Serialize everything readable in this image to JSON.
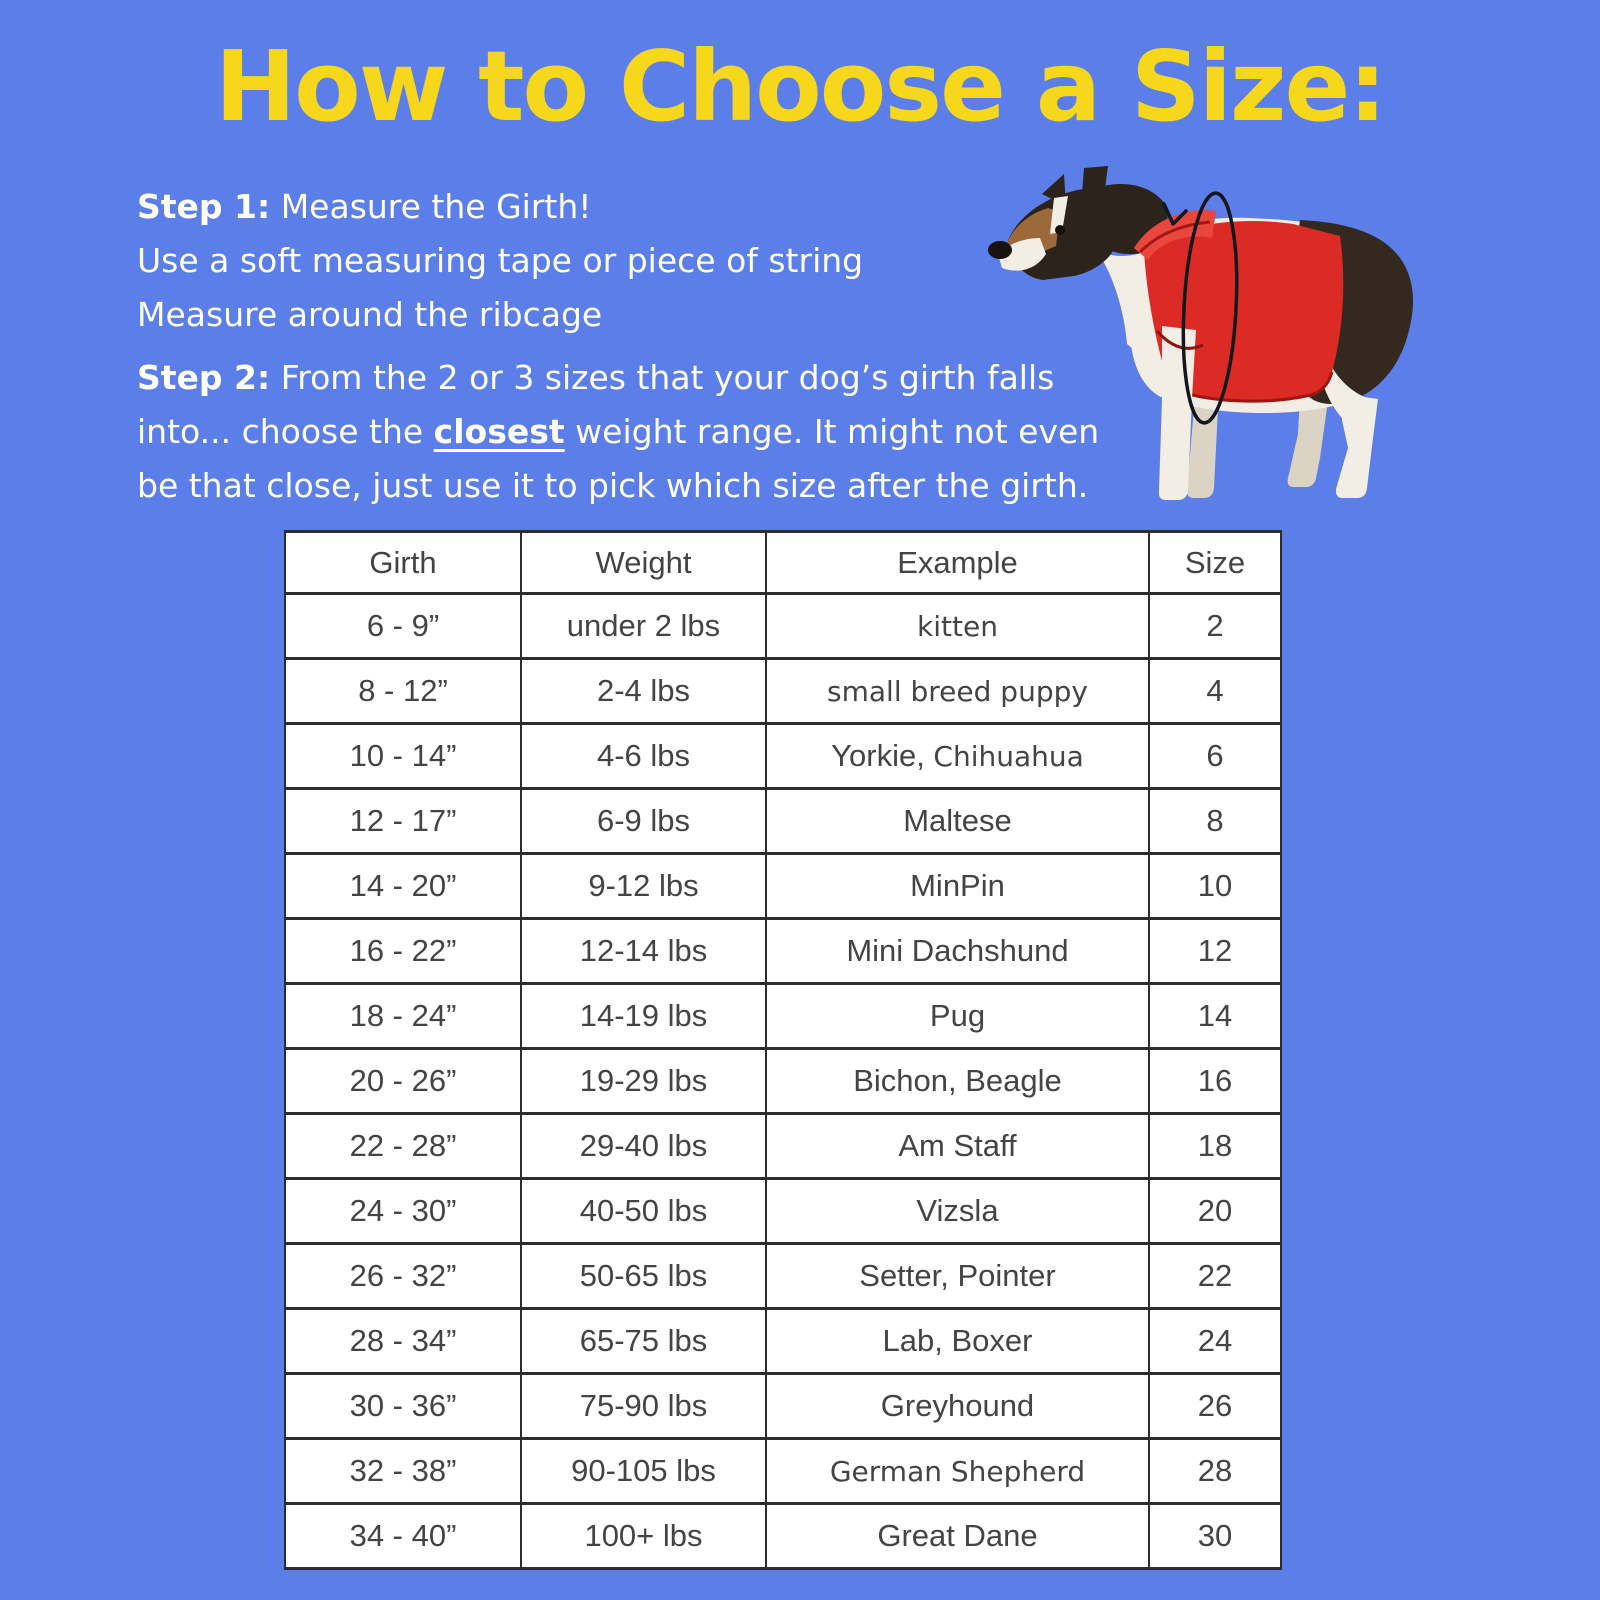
{
  "page": {
    "title": "How to Choose a Size:"
  },
  "steps": {
    "step1": {
      "label": "Step 1:",
      "heading": " Measure the Girth!",
      "lines": [
        "Use a soft measuring tape or piece of string",
        "Measure around the ribcage"
      ]
    },
    "step2": {
      "label": "Step 2:",
      "line1": " From the 2 or 3 sizes that your dog’s girth falls",
      "line2_pre": "into... choose the ",
      "line2_em": "closest",
      "line2_post": " weight range. It might not even",
      "line3": "be that close, just use it to pick which size after the girth."
    }
  },
  "illustration": {
    "description": "dog wearing red fleece vest with measurement loop arrow around its girth"
  },
  "table": {
    "headers": [
      "Girth",
      "Weight",
      "Example",
      "Size"
    ],
    "rows": [
      {
        "girth": "6 - 9”",
        "weight": "under 2 lbs",
        "example": [
          {
            "t": "kitten",
            "alt": true
          }
        ],
        "size": "2"
      },
      {
        "girth": "8 - 12”",
        "weight": "2-4 lbs",
        "example": [
          {
            "t": "small breed puppy",
            "alt": true
          }
        ],
        "size": "4"
      },
      {
        "girth": "10 - 14”",
        "weight": "4-6 lbs",
        "example": [
          {
            "t": "Yorkie, ",
            "alt": false
          },
          {
            "t": "Chihuahua",
            "alt": true
          }
        ],
        "size": "6"
      },
      {
        "girth": "12 - 17”",
        "weight": "6-9 lbs",
        "example": [
          {
            "t": "Maltese",
            "alt": false
          }
        ],
        "size": "8"
      },
      {
        "girth": "14 - 20”",
        "weight": "9-12 lbs",
        "example": [
          {
            "t": "MinPin",
            "alt": false
          }
        ],
        "size": "10"
      },
      {
        "girth": "16 - 22”",
        "weight": "12-14 lbs",
        "example": [
          {
            "t": "Mini Dachshund",
            "alt": false
          }
        ],
        "size": "12"
      },
      {
        "girth": "18 - 24”",
        "weight": "14-19 lbs",
        "example": [
          {
            "t": "Pug",
            "alt": false
          }
        ],
        "size": "14"
      },
      {
        "girth": "20 - 26”",
        "weight": "19-29 lbs",
        "example": [
          {
            "t": "Bichon, Beagle",
            "alt": false
          }
        ],
        "size": "16"
      },
      {
        "girth": "22 - 28”",
        "weight": "29-40 lbs",
        "example": [
          {
            "t": "Am Staff",
            "alt": false
          }
        ],
        "size": "18"
      },
      {
        "girth": "24 - 30”",
        "weight": "40-50 lbs",
        "example": [
          {
            "t": "Vizsla",
            "alt": false
          }
        ],
        "size": "20"
      },
      {
        "girth": "26 - 32”",
        "weight": "50-65 lbs",
        "example": [
          {
            "t": "Setter, Pointer",
            "alt": false
          }
        ],
        "size": "22"
      },
      {
        "girth": "28 - 34”",
        "weight": "65-75 lbs",
        "example": [
          {
            "t": "Lab, Boxer",
            "alt": false
          }
        ],
        "size": "24"
      },
      {
        "girth": "30 - 36”",
        "weight": "75-90 lbs",
        "example": [
          {
            "t": "Greyhound",
            "alt": false
          }
        ],
        "size": "26"
      },
      {
        "girth": "32 - 38”",
        "weight": "90-105 lbs",
        "example": [
          {
            "t": "German Shepherd",
            "alt": true
          }
        ],
        "size": "28"
      },
      {
        "girth": "34 - 40”",
        "weight": "100+ lbs",
        "example": [
          {
            "t": "Great Dane",
            "alt": false
          }
        ],
        "size": "30"
      }
    ]
  },
  "colors": {
    "background": "#5c7ee9",
    "title_yellow": "#f7d71c",
    "body_text": "#ffffff",
    "table_text": "#444446",
    "table_border": "#2d2d2f",
    "vest_red": "#dc2a24"
  }
}
